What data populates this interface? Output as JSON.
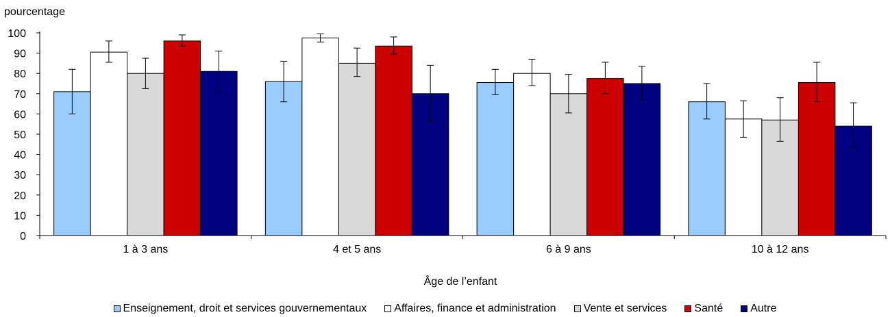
{
  "chart_data": {
    "type": "bar",
    "ylabel": "pourcentage",
    "xlabel": "Âge de l’enfant",
    "ylim": [
      0,
      100
    ],
    "yticks": [
      0,
      10,
      20,
      30,
      40,
      50,
      60,
      70,
      80,
      90,
      100
    ],
    "categories": [
      "1 à 3 ans",
      "4 et 5 ans",
      "6 à 9 ans",
      "10 à 12 ans"
    ],
    "grid": false,
    "legend_position": "bottom",
    "series": [
      {
        "name": "Enseignement, droit et services gouvernementaux",
        "color": "#99ccff",
        "values": [
          71,
          76,
          75.5,
          66
        ],
        "err_low": [
          60,
          66,
          69.5,
          57.5
        ],
        "err_high": [
          82,
          86,
          82,
          75
        ]
      },
      {
        "name": "Affaires, finance et administration",
        "color": "#ffffff",
        "values": [
          90.5,
          97.5,
          80,
          57.5
        ],
        "err_low": [
          85.5,
          95.5,
          74,
          48.5
        ],
        "err_high": [
          96,
          99.5,
          87,
          66.5
        ]
      },
      {
        "name": "Vente et services",
        "color": "#d9d9d9",
        "values": [
          80,
          85,
          70,
          57
        ],
        "err_low": [
          72.5,
          78.5,
          60.5,
          46.5
        ],
        "err_high": [
          87.5,
          92.5,
          79.5,
          68
        ]
      },
      {
        "name": "Santé",
        "color": "#cc0000",
        "values": [
          96,
          93.5,
          77.5,
          75.5
        ],
        "err_low": [
          93.5,
          89.5,
          70,
          66
        ],
        "err_high": [
          99,
          98,
          85.5,
          85.5
        ]
      },
      {
        "name": "Autre",
        "color": "#000080",
        "values": [
          81,
          70,
          75,
          54
        ],
        "err_low": [
          71,
          56.5,
          67,
          43.5
        ],
        "err_high": [
          91,
          84,
          83.5,
          65.5
        ]
      }
    ]
  }
}
